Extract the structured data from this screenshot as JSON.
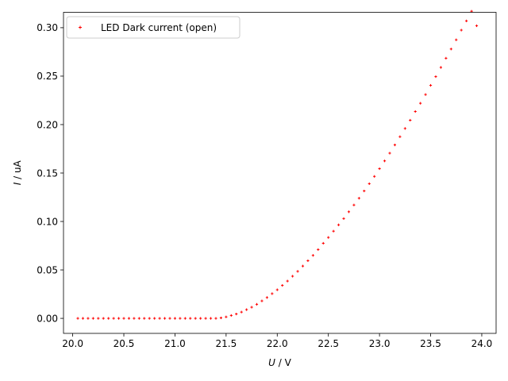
{
  "chart_data": {
    "type": "scatter",
    "title": "",
    "xlabel_italic": "U",
    "xlabel_rest": " / V",
    "ylabel_italic": "I",
    "ylabel_rest": " / uA",
    "xlim": [
      19.91,
      24.14
    ],
    "ylim": [
      -0.0155,
      0.3159
    ],
    "xticks": [
      20.0,
      20.5,
      21.0,
      21.5,
      22.0,
      22.5,
      23.0,
      23.5,
      24.0
    ],
    "xtick_labels": [
      "20.0",
      "20.5",
      "21.0",
      "21.5",
      "22.0",
      "22.5",
      "23.0",
      "23.5",
      "24.0"
    ],
    "yticks": [
      0.0,
      0.05,
      0.1,
      0.15,
      0.2,
      0.25,
      0.3
    ],
    "ytick_labels": [
      "0.00",
      "0.05",
      "0.10",
      "0.15",
      "0.20",
      "0.25",
      "0.30"
    ],
    "grid": false,
    "legend_position": "top-left",
    "series": [
      {
        "name": "LED Dark current (open)",
        "color": "#ff0000",
        "marker": "plus",
        "points": [
          [
            20.05,
            0.0
          ],
          [
            20.1,
            0.0
          ],
          [
            20.15,
            0.0
          ],
          [
            20.2,
            0.0
          ],
          [
            20.25,
            0.0
          ],
          [
            20.3,
            0.0
          ],
          [
            20.35,
            0.0
          ],
          [
            20.4,
            0.0
          ],
          [
            20.45,
            0.0
          ],
          [
            20.5,
            0.0
          ],
          [
            20.55,
            0.0
          ],
          [
            20.6,
            0.0
          ],
          [
            20.65,
            0.0
          ],
          [
            20.7,
            0.0
          ],
          [
            20.75,
            0.0
          ],
          [
            20.8,
            0.0
          ],
          [
            20.85,
            0.0
          ],
          [
            20.9,
            0.0
          ],
          [
            20.95,
            0.0
          ],
          [
            21.0,
            0.0
          ],
          [
            21.05,
            0.0
          ],
          [
            21.1,
            0.0
          ],
          [
            21.15,
            0.0
          ],
          [
            21.2,
            0.0
          ],
          [
            21.25,
            0.0
          ],
          [
            21.3,
            0.0
          ],
          [
            21.35,
            0.0
          ],
          [
            21.4,
            0.0
          ],
          [
            21.45,
            0.0005
          ],
          [
            21.5,
            0.0015
          ],
          [
            21.55,
            0.003
          ],
          [
            21.6,
            0.0045
          ],
          [
            21.65,
            0.0065
          ],
          [
            21.7,
            0.009
          ],
          [
            21.75,
            0.0115
          ],
          [
            21.8,
            0.0145
          ],
          [
            21.85,
            0.018
          ],
          [
            21.9,
            0.0215
          ],
          [
            21.95,
            0.0255
          ],
          [
            22.0,
            0.0295
          ],
          [
            22.05,
            0.034
          ],
          [
            22.1,
            0.0385
          ],
          [
            22.15,
            0.0435
          ],
          [
            22.2,
            0.0485
          ],
          [
            22.25,
            0.054
          ],
          [
            22.3,
            0.0595
          ],
          [
            22.35,
            0.065
          ],
          [
            22.4,
            0.071
          ],
          [
            22.45,
            0.0775
          ],
          [
            22.5,
            0.0835
          ],
          [
            22.55,
            0.09
          ],
          [
            22.6,
            0.0965
          ],
          [
            22.65,
            0.103
          ],
          [
            22.7,
            0.11
          ],
          [
            22.75,
            0.117
          ],
          [
            22.8,
            0.124
          ],
          [
            22.85,
            0.1315
          ],
          [
            22.9,
            0.139
          ],
          [
            22.95,
            0.1465
          ],
          [
            23.0,
            0.1545
          ],
          [
            23.05,
            0.1625
          ],
          [
            23.1,
            0.1705
          ],
          [
            23.15,
            0.179
          ],
          [
            23.2,
            0.1875
          ],
          [
            23.25,
            0.196
          ],
          [
            23.3,
            0.2045
          ],
          [
            23.35,
            0.2135
          ],
          [
            23.4,
            0.222
          ],
          [
            23.45,
            0.231
          ],
          [
            23.5,
            0.2405
          ],
          [
            23.55,
            0.2495
          ],
          [
            23.6,
            0.259
          ],
          [
            23.65,
            0.2685
          ],
          [
            23.7,
            0.278
          ],
          [
            23.75,
            0.2875
          ],
          [
            23.8,
            0.2975
          ],
          [
            23.85,
            0.307
          ],
          [
            23.9,
            0.317
          ],
          [
            23.95,
            0.302
          ]
        ]
      }
    ]
  }
}
